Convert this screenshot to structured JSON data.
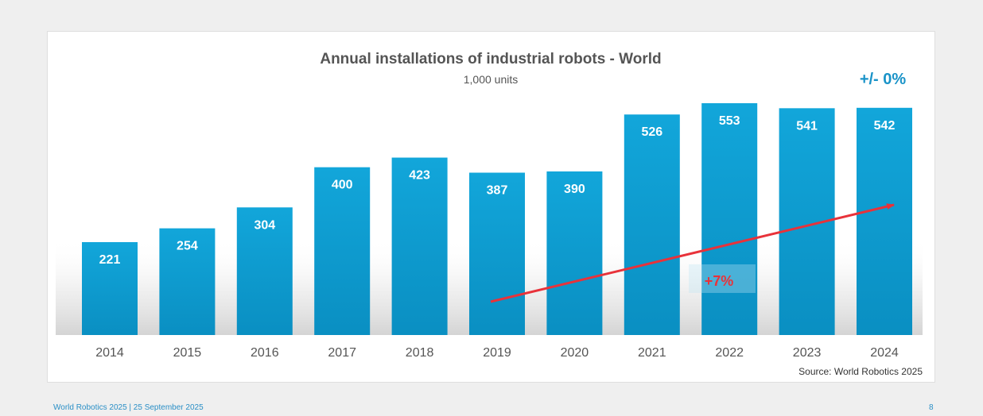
{
  "chart_data": {
    "type": "bar",
    "title": "Annual installations of industrial robots - World",
    "subtitle": "1,000 units",
    "categories": [
      "2014",
      "2015",
      "2016",
      "2017",
      "2018",
      "2019",
      "2020",
      "2021",
      "2022",
      "2023",
      "2024"
    ],
    "values": [
      221,
      254,
      304,
      400,
      423,
      387,
      390,
      526,
      553,
      541,
      542
    ],
    "ylim": [
      0,
      580
    ],
    "grid": false,
    "bar_color": "#0d9ed2",
    "annotations": {
      "trend_label": "+7%",
      "trend_color": "#e8323a",
      "change_label": "+/- 0%",
      "change_color": "#1a93c8"
    },
    "source": "Source: World Robotics 2025"
  },
  "footer": {
    "left": "World Robotics 2025  | 25 September 2025",
    "page": "8"
  }
}
